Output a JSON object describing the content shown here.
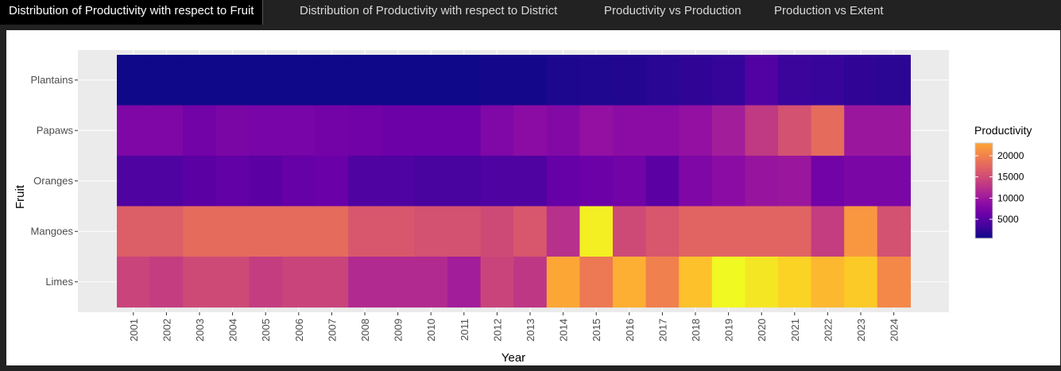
{
  "tabs": [
    {
      "label": "Distribution of Productivity with respect to Fruit",
      "active": true
    },
    {
      "label": "Distribution of Productivity with respect to District",
      "active": false
    },
    {
      "label": "Productivity vs Production",
      "active": false
    },
    {
      "label": "Production vs Extent",
      "active": false
    }
  ],
  "chart_data": {
    "type": "heatmap",
    "xlabel": "Year",
    "ylabel": "Fruit",
    "x": [
      "2001",
      "2002",
      "2003",
      "2004",
      "2005",
      "2006",
      "2007",
      "2008",
      "2009",
      "2010",
      "2011",
      "2012",
      "2013",
      "2014",
      "2015",
      "2016",
      "2017",
      "2018",
      "2019",
      "2020",
      "2021",
      "2022",
      "2023",
      "2024"
    ],
    "y": [
      "Plantains",
      "Papaws",
      "Oranges",
      "Mangoes",
      "Limes"
    ],
    "values": [
      [
        600,
        600,
        600,
        600,
        600,
        600,
        600,
        600,
        600,
        600,
        600,
        800,
        800,
        1200,
        1300,
        1400,
        1700,
        2000,
        2200,
        3700,
        2500,
        2300,
        2000,
        1800
      ],
      [
        6200,
        6200,
        5500,
        6000,
        5800,
        5800,
        5600,
        5400,
        5200,
        5200,
        5200,
        6300,
        7000,
        6500,
        7500,
        7000,
        7000,
        7500,
        8500,
        10700,
        12500,
        14500,
        8000,
        8000
      ],
      [
        3500,
        3500,
        4200,
        4500,
        4200,
        4800,
        5000,
        3500,
        3500,
        3200,
        3200,
        3500,
        3500,
        4800,
        5200,
        5500,
        4200,
        6200,
        7000,
        7800,
        8000,
        5500,
        6000,
        6000
      ],
      [
        13500,
        13500,
        14500,
        14500,
        14500,
        14500,
        14500,
        13000,
        13000,
        12500,
        12500,
        12000,
        13000,
        10000,
        22500,
        12000,
        13000,
        14000,
        14000,
        14000,
        14000,
        11000,
        17500,
        12500
      ],
      [
        11500,
        11000,
        12000,
        12000,
        11000,
        11500,
        11500,
        9500,
        9500,
        9500,
        8500,
        11500,
        10500,
        18500,
        15500,
        19000,
        16000,
        20000,
        23000,
        22000,
        21000,
        19500,
        20500,
        16500
      ]
    ],
    "legend": {
      "title": "Productivity",
      "ticks": [
        5000,
        10000,
        15000,
        20000
      ],
      "min": 500,
      "max": 23000,
      "position": "right"
    },
    "colorscale": "plasma",
    "grid": true
  }
}
